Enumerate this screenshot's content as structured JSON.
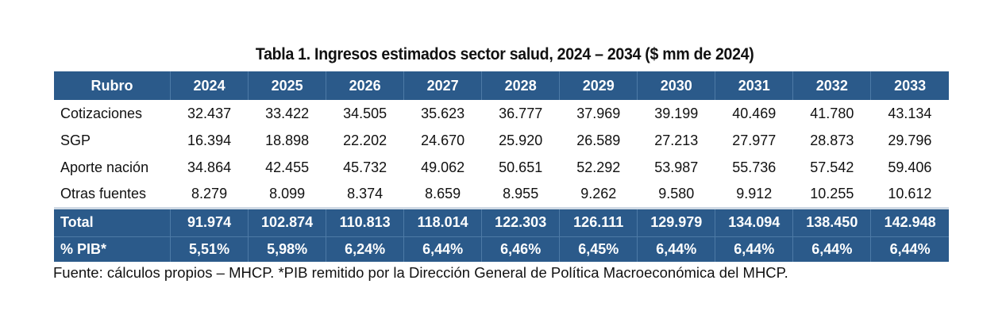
{
  "title": "Tabla 1. Ingresos estimados sector salud, 2024 – 2034 ($ mm de 2024)",
  "table": {
    "header": [
      "Rubro",
      "2024",
      "2025",
      "2026",
      "2027",
      "2028",
      "2029",
      "2030",
      "2031",
      "2032",
      "2033"
    ],
    "rows": [
      [
        "Cotizaciones",
        "32.437",
        "33.422",
        "34.505",
        "35.623",
        "36.777",
        "37.969",
        "39.199",
        "40.469",
        "41.780",
        "43.134"
      ],
      [
        "SGP",
        "16.394",
        "18.898",
        "22.202",
        "24.670",
        "25.920",
        "26.589",
        "27.213",
        "27.977",
        "28.873",
        "29.796"
      ],
      [
        "Aporte nación",
        "34.864",
        "42.455",
        "45.732",
        "49.062",
        "50.651",
        "52.292",
        "53.987",
        "55.736",
        "57.542",
        "59.406"
      ],
      [
        "Otras fuentes",
        "8.279",
        "8.099",
        "8.374",
        "8.659",
        "8.955",
        "9.262",
        "9.580",
        "9.912",
        "10.255",
        "10.612"
      ]
    ],
    "total": [
      "Total",
      "91.974",
      "102.874",
      "110.813",
      "118.014",
      "122.303",
      "126.111",
      "129.979",
      "134.094",
      "138.450",
      "142.948"
    ],
    "pib": [
      "% PIB*",
      "5,51%",
      "5,98%",
      "6,24%",
      "6,44%",
      "6,46%",
      "6,45%",
      "6,44%",
      "6,44%",
      "6,44%",
      "6,44%"
    ]
  },
  "source_note": "Fuente: cálculos propios – MHCP.  *PIB remitido por la Dirección General de Política Macroeconómica del MHCP.",
  "colors": {
    "header_bg": "#2b5a8a",
    "header_text": "#ffffff",
    "body_text": "#111111"
  }
}
